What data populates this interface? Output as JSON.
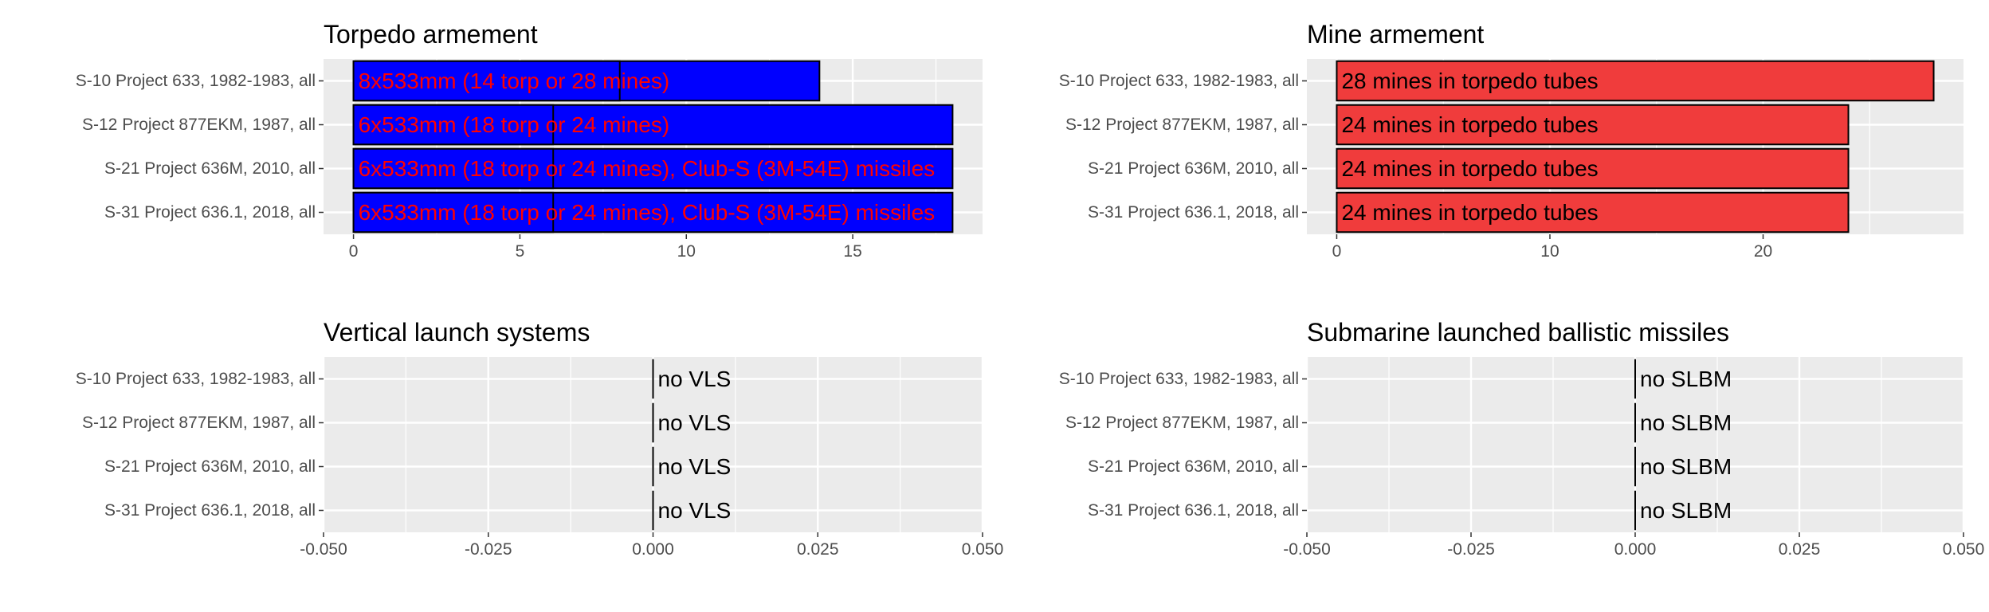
{
  "chart_data": [
    {
      "type": "bar",
      "orientation": "horizontal",
      "title": "Torpedo armement",
      "xlabel": "",
      "ylabel": "",
      "categories": [
        "S-10 Project 633, 1982-1983, all",
        "S-12 Project 877EKM, 1987, all",
        "S-21 Project 636M, 2010, all",
        "S-31 Project 636.1, 2018, all"
      ],
      "xlim": [
        -0.9,
        18.9
      ],
      "xticks": [
        0,
        5,
        10,
        15
      ],
      "xtick_labels": [
        "0",
        "5",
        "10",
        "15"
      ],
      "grid": true,
      "fill_color": "#0000ff",
      "label_color": "#ff0000",
      "series": [
        {
          "values": [
            8,
            6,
            6,
            6
          ]
        },
        {
          "values": [
            14,
            18,
            18,
            18
          ]
        }
      ],
      "bar_labels": [
        "8x533mm (14 torp or 28 mines)",
        "6x533mm (18 torp or 24 mines)",
        "6x533mm (18 torp or 24 mines), Club-S (3M-54E) missiles",
        "6x533mm (18 torp or 24 mines), Club-S (3M-54E) missiles"
      ]
    },
    {
      "type": "bar",
      "orientation": "horizontal",
      "title": "Mine armement",
      "xlabel": "",
      "ylabel": "",
      "categories": [
        "S-10 Project 633, 1982-1983, all",
        "S-12 Project 877EKM, 1987, all",
        "S-21 Project 636M, 2010, all",
        "S-31 Project 636.1, 2018, all"
      ],
      "xlim": [
        -1.4,
        29.4
      ],
      "xticks": [
        0,
        10,
        20
      ],
      "xtick_labels": [
        "0",
        "10",
        "20"
      ],
      "grid": true,
      "fill_color": "#f03c3c",
      "label_color": "#000000",
      "series": [
        {
          "values": [
            28,
            24,
            24,
            24
          ]
        }
      ],
      "bar_labels": [
        "28 mines in torpedo tubes",
        "24 mines in torpedo tubes",
        "24 mines in torpedo tubes",
        "24 mines in torpedo tubes"
      ]
    },
    {
      "type": "bar",
      "orientation": "horizontal",
      "title": "Vertical launch systems",
      "xlabel": "",
      "ylabel": "",
      "categories": [
        "S-10 Project 633, 1982-1983, all",
        "S-12 Project 877EKM, 1987, all",
        "S-21 Project 636M, 2010, all",
        "S-31 Project 636.1, 2018, all"
      ],
      "xlim": [
        -0.05,
        0.05
      ],
      "xticks": [
        -0.05,
        -0.025,
        0,
        0.025,
        0.05
      ],
      "xtick_labels": [
        "-0.050",
        "-0.025",
        "0.000",
        "0.025",
        "0.050"
      ],
      "grid": true,
      "fill_color": "#000000",
      "label_color": "#000000",
      "series": [
        {
          "values": [
            0,
            0,
            0,
            0
          ]
        }
      ],
      "bar_labels": [
        "no VLS",
        "no VLS",
        "no VLS",
        "no VLS"
      ]
    },
    {
      "type": "bar",
      "orientation": "horizontal",
      "title": "Submarine launched ballistic missiles",
      "xlabel": "",
      "ylabel": "",
      "categories": [
        "S-10 Project 633, 1982-1983, all",
        "S-12 Project 877EKM, 1987, all",
        "S-21 Project 636M, 2010, all",
        "S-31 Project 636.1, 2018, all"
      ],
      "xlim": [
        -0.05,
        0.05
      ],
      "xticks": [
        -0.05,
        -0.025,
        0,
        0.025,
        0.05
      ],
      "xtick_labels": [
        "-0.050",
        "-0.025",
        "0.000",
        "0.025",
        "0.050"
      ],
      "grid": true,
      "fill_color": "#000000",
      "label_color": "#000000",
      "series": [
        {
          "values": [
            0,
            0,
            0,
            0
          ]
        }
      ],
      "bar_labels": [
        "no SLBM",
        "no SLBM",
        "no SLBM",
        "no SLBM"
      ]
    }
  ]
}
